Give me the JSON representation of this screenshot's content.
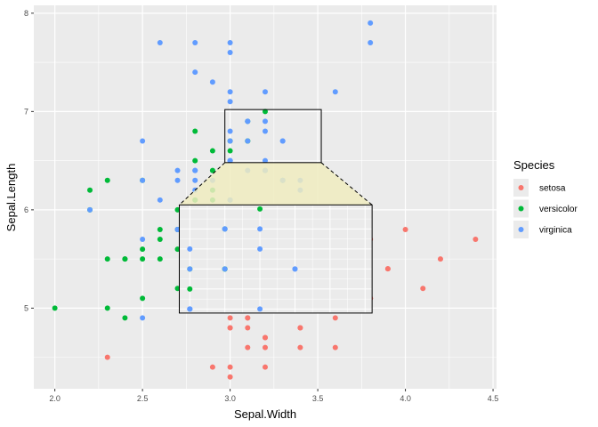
{
  "chart_data": {
    "type": "scatter",
    "xlabel": "Sepal.Width",
    "ylabel": "Sepal.Length",
    "xlim": [
      1.88,
      4.52
    ],
    "ylim": [
      4.18,
      8.08
    ],
    "x_ticks": [
      2.0,
      2.5,
      3.0,
      3.5,
      4.0,
      4.5
    ],
    "x_tick_labels": [
      "2.0",
      "2.5",
      "3.0",
      "3.5",
      "4.0",
      "4.5"
    ],
    "y_ticks": [
      5,
      6,
      7,
      8
    ],
    "y_tick_labels": [
      "5",
      "6",
      "7",
      "8"
    ],
    "grid": true,
    "background": "#ebebeb",
    "legend": {
      "title": "Species",
      "placement": "right",
      "entries": [
        "setosa",
        "versicolor",
        "virginica"
      ]
    },
    "series": [
      {
        "name": "setosa",
        "color": "#f8766d",
        "points": [
          [
            3.5,
            5.1
          ],
          [
            3.0,
            4.9
          ],
          [
            3.2,
            4.7
          ],
          [
            3.1,
            4.6
          ],
          [
            3.6,
            5.0
          ],
          [
            3.9,
            5.4
          ],
          [
            3.4,
            4.6
          ],
          [
            3.4,
            5.0
          ],
          [
            2.9,
            4.4
          ],
          [
            3.1,
            4.9
          ],
          [
            3.7,
            5.4
          ],
          [
            3.4,
            4.8
          ],
          [
            3.0,
            4.8
          ],
          [
            3.0,
            4.3
          ],
          [
            4.0,
            5.8
          ],
          [
            4.4,
            5.7
          ],
          [
            3.9,
            5.4
          ],
          [
            3.5,
            5.1
          ],
          [
            3.8,
            5.7
          ],
          [
            3.8,
            5.1
          ],
          [
            3.4,
            5.4
          ],
          [
            3.7,
            5.1
          ],
          [
            3.6,
            4.6
          ],
          [
            3.3,
            5.1
          ],
          [
            3.4,
            4.8
          ],
          [
            3.0,
            5.0
          ],
          [
            3.4,
            5.0
          ],
          [
            3.5,
            5.2
          ],
          [
            3.4,
            5.2
          ],
          [
            3.2,
            4.7
          ],
          [
            3.1,
            4.8
          ],
          [
            3.4,
            5.4
          ],
          [
            4.1,
            5.2
          ],
          [
            4.2,
            5.5
          ],
          [
            3.1,
            4.9
          ],
          [
            3.2,
            5.0
          ],
          [
            3.5,
            5.5
          ],
          [
            3.6,
            4.9
          ],
          [
            3.0,
            4.4
          ],
          [
            3.4,
            5.1
          ],
          [
            3.5,
            5.0
          ],
          [
            2.3,
            4.5
          ],
          [
            3.2,
            4.4
          ],
          [
            3.5,
            5.0
          ],
          [
            3.8,
            5.1
          ],
          [
            3.0,
            4.8
          ],
          [
            3.8,
            5.1
          ],
          [
            3.2,
            4.6
          ],
          [
            3.7,
            5.3
          ],
          [
            3.3,
            5.0
          ]
        ]
      },
      {
        "name": "versicolor",
        "color": "#00ba38",
        "points": [
          [
            3.2,
            7.0
          ],
          [
            3.2,
            6.4
          ],
          [
            3.1,
            6.9
          ],
          [
            2.3,
            5.5
          ],
          [
            2.8,
            6.5
          ],
          [
            2.8,
            5.7
          ],
          [
            3.3,
            6.3
          ],
          [
            2.4,
            4.9
          ],
          [
            2.9,
            6.6
          ],
          [
            2.7,
            5.2
          ],
          [
            2.0,
            5.0
          ],
          [
            3.0,
            5.9
          ],
          [
            2.2,
            6.0
          ],
          [
            2.9,
            6.1
          ],
          [
            2.9,
            5.6
          ],
          [
            3.1,
            6.7
          ],
          [
            3.0,
            5.6
          ],
          [
            2.7,
            5.8
          ],
          [
            2.2,
            6.2
          ],
          [
            2.5,
            5.6
          ],
          [
            3.2,
            5.9
          ],
          [
            2.8,
            6.1
          ],
          [
            2.5,
            6.3
          ],
          [
            2.8,
            6.1
          ],
          [
            2.9,
            6.4
          ],
          [
            3.0,
            6.6
          ],
          [
            2.8,
            6.8
          ],
          [
            3.0,
            6.7
          ],
          [
            2.9,
            6.0
          ],
          [
            2.6,
            5.7
          ],
          [
            2.4,
            5.5
          ],
          [
            2.4,
            5.5
          ],
          [
            2.7,
            5.8
          ],
          [
            2.7,
            6.0
          ],
          [
            3.0,
            5.4
          ],
          [
            3.4,
            6.0
          ],
          [
            3.1,
            6.7
          ],
          [
            2.3,
            6.3
          ],
          [
            3.0,
            5.6
          ],
          [
            2.5,
            5.5
          ],
          [
            2.6,
            5.5
          ],
          [
            3.0,
            6.1
          ],
          [
            2.6,
            5.8
          ],
          [
            2.3,
            5.0
          ],
          [
            2.7,
            5.6
          ],
          [
            3.0,
            5.7
          ],
          [
            2.9,
            5.7
          ],
          [
            2.9,
            6.2
          ],
          [
            2.5,
            5.1
          ],
          [
            2.8,
            5.7
          ]
        ]
      },
      {
        "name": "virginica",
        "color": "#619cff",
        "points": [
          [
            3.3,
            6.3
          ],
          [
            2.7,
            5.8
          ],
          [
            3.0,
            7.1
          ],
          [
            2.9,
            6.3
          ],
          [
            3.0,
            6.5
          ],
          [
            3.0,
            7.6
          ],
          [
            2.5,
            4.9
          ],
          [
            2.9,
            7.3
          ],
          [
            2.5,
            6.7
          ],
          [
            3.6,
            7.2
          ],
          [
            3.2,
            6.5
          ],
          [
            2.7,
            6.4
          ],
          [
            3.0,
            6.8
          ],
          [
            2.5,
            5.7
          ],
          [
            2.8,
            5.8
          ],
          [
            3.2,
            6.4
          ],
          [
            3.0,
            6.5
          ],
          [
            3.8,
            7.7
          ],
          [
            2.6,
            7.7
          ],
          [
            2.2,
            6.0
          ],
          [
            3.2,
            6.9
          ],
          [
            2.8,
            5.6
          ],
          [
            2.8,
            7.7
          ],
          [
            2.7,
            6.3
          ],
          [
            3.3,
            6.7
          ],
          [
            3.2,
            7.2
          ],
          [
            2.8,
            6.2
          ],
          [
            3.0,
            6.1
          ],
          [
            2.8,
            6.4
          ],
          [
            3.0,
            7.2
          ],
          [
            2.8,
            7.4
          ],
          [
            3.8,
            7.9
          ],
          [
            2.8,
            6.4
          ],
          [
            2.8,
            6.3
          ],
          [
            2.6,
            6.1
          ],
          [
            3.0,
            7.7
          ],
          [
            3.4,
            6.3
          ],
          [
            3.1,
            6.4
          ],
          [
            3.0,
            6.0
          ],
          [
            3.1,
            6.9
          ],
          [
            3.1,
            6.7
          ],
          [
            3.1,
            6.9
          ],
          [
            2.7,
            5.8
          ],
          [
            3.2,
            6.8
          ],
          [
            3.3,
            6.7
          ],
          [
            3.0,
            6.7
          ],
          [
            2.5,
            6.3
          ],
          [
            3.0,
            6.5
          ],
          [
            3.4,
            6.2
          ],
          [
            3.0,
            5.9
          ]
        ]
      }
    ],
    "zoom": {
      "region": {
        "x": [
          2.97,
          3.52
        ],
        "y": [
          6.48,
          7.02
        ]
      },
      "inset_fill": "#f0ecc0",
      "inset_region_on_axes": {
        "x": [
          2.71,
          3.81
        ],
        "y": [
          4.95,
          6.05
        ]
      }
    }
  }
}
